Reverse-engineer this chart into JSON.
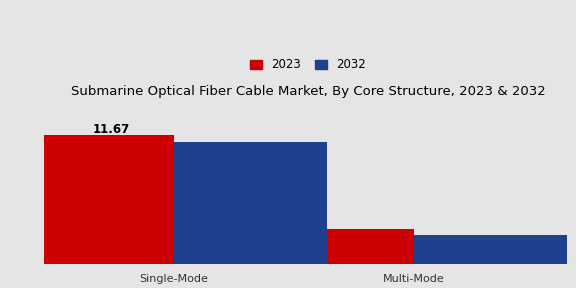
{
  "title": "Submarine Optical Fiber Cable Market, By Core Structure, 2023 & 2032",
  "categories": [
    "Single-Mode",
    "Multi-Mode"
  ],
  "values_2023": [
    11.67,
    3.2
  ],
  "values_2032": [
    11.0,
    2.6
  ],
  "label_2023": "2023",
  "label_2032": "2032",
  "color_2023": "#cc0000",
  "color_2032": "#1f3f8f",
  "annotation_text": "11.67",
  "background_color": "#e5e5e5",
  "bar_width": 0.32,
  "ylim": [
    0,
    14.5
  ],
  "title_fontsize": 9.5,
  "legend_fontsize": 8.5,
  "ylabel_fontsize": 7.5,
  "tick_fontsize": 8,
  "annotation_fontsize": 8.5
}
